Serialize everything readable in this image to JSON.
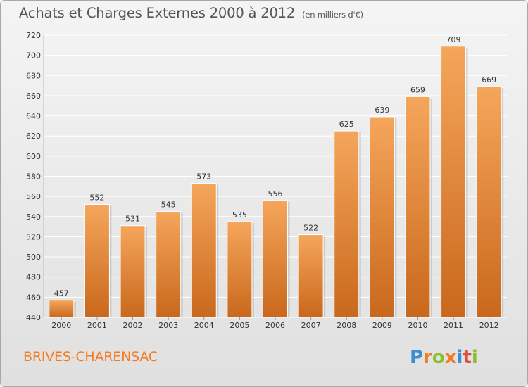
{
  "title": {
    "main": "Achats et Charges Externes 2000 à 2012",
    "unit": "(en milliers d'€)"
  },
  "commune": "BRIVES-CHARENSAC",
  "logo_text": "Proxiti",
  "colors": {
    "bar_top": "#f5a65b",
    "bar_bottom": "#c9681c",
    "commune_text": "#f47c20",
    "grid": "#ffffff",
    "axis_text": "#333333"
  },
  "chart_data": {
    "type": "bar",
    "categories": [
      "2000",
      "2001",
      "2002",
      "2003",
      "2004",
      "2005",
      "2006",
      "2007",
      "2008",
      "2009",
      "2010",
      "2011",
      "2012"
    ],
    "values": [
      457,
      552,
      531,
      545,
      573,
      535,
      556,
      522,
      625,
      639,
      659,
      709,
      669
    ],
    "data_labels": [
      "457",
      "552",
      "531",
      "545",
      "573",
      "535",
      "556",
      "522",
      "625",
      "639",
      "659",
      "709",
      "669"
    ],
    "ylim": [
      440,
      720
    ],
    "yticks": [
      "440",
      "460",
      "480",
      "500",
      "520",
      "540",
      "560",
      "580",
      "600",
      "620",
      "640",
      "660",
      "680",
      "700",
      "720"
    ],
    "grid": true,
    "title": "Achats et Charges Externes 2000 à 2012",
    "xlabel": "",
    "ylabel": ""
  }
}
